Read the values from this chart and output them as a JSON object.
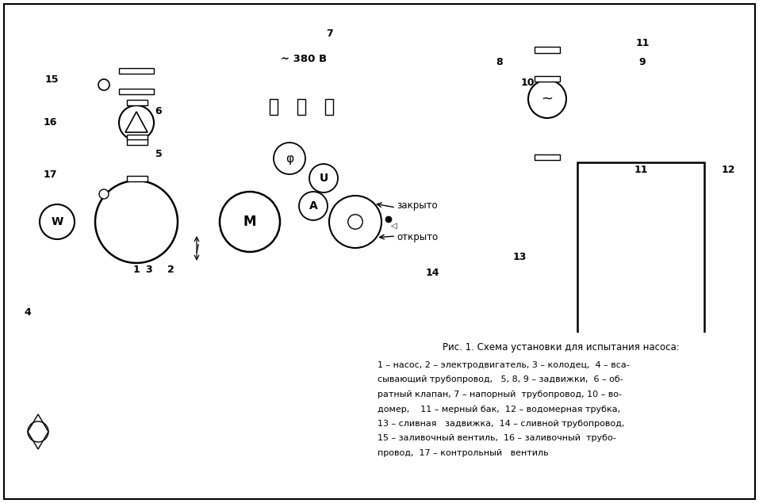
{
  "fig_caption_title": "Рис. 1. Схема установки для испытания насоса:",
  "caption_lines": [
    "1 – насос, 2 – электродвигатель, 3 – колодец,  4 – вса-",
    "сывающий трубопровод,   5, 8, 9 – задвижки,  6 – об-",
    "ратный клапан, 7 – напорный  трубопровод, 10 – во-",
    "домер,    11 – мерный бак,  12 – водомерная трубка,",
    "13 – сливная   задвижка,  14 – сливной трубопровод,",
    "15 – заливочный вентиль,  16 – заливочный  трубо-",
    "провод,  17 – контрольный   вентиль"
  ],
  "bg_color": "#ffffff"
}
